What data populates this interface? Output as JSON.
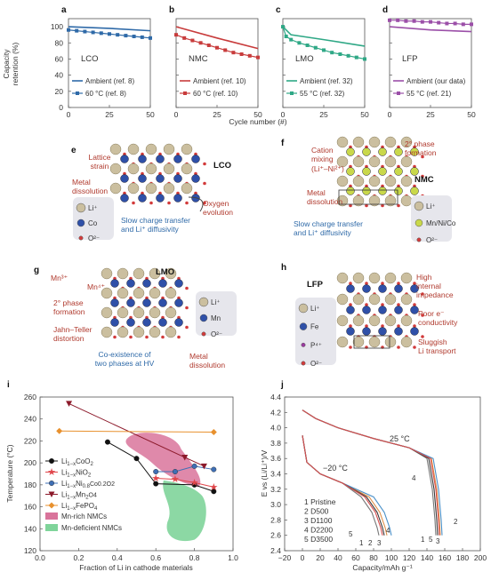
{
  "top": {
    "ylabel": [
      "Capacity",
      "retention (%)"
    ],
    "xlabel": "Cycle number (#)",
    "yticks": [
      "0",
      "20",
      "40",
      "60",
      "80",
      "100"
    ],
    "xticks": [
      "0",
      "25",
      "50"
    ],
    "panels": [
      {
        "letter": "a",
        "material": "LCO",
        "color": "#2f6aa8",
        "legend": [
          "Ambient (ref. 8)",
          "60 °C (ref. 8)"
        ],
        "ambient": [
          [
            0,
            100
          ],
          [
            25,
            98
          ],
          [
            50,
            95
          ]
        ],
        "hot": [
          [
            0,
            96
          ],
          [
            5,
            95
          ],
          [
            10,
            94
          ],
          [
            15,
            93
          ],
          [
            20,
            92
          ],
          [
            25,
            91
          ],
          [
            30,
            90
          ],
          [
            35,
            89
          ],
          [
            40,
            88
          ],
          [
            45,
            87
          ],
          [
            50,
            86
          ]
        ]
      },
      {
        "letter": "b",
        "material": "NMC",
        "color": "#c83c3c",
        "legend": [
          "Ambient (ref. 10)",
          "60 °C (ref. 10)"
        ],
        "ambient": [
          [
            0,
            100
          ],
          [
            25,
            86
          ],
          [
            50,
            73
          ]
        ],
        "hot": [
          [
            0,
            90
          ],
          [
            5,
            86
          ],
          [
            10,
            83
          ],
          [
            15,
            80
          ],
          [
            20,
            77
          ],
          [
            25,
            74
          ],
          [
            30,
            71
          ],
          [
            35,
            68
          ],
          [
            40,
            66
          ],
          [
            45,
            64
          ],
          [
            50,
            62
          ]
        ]
      },
      {
        "letter": "c",
        "material": "LMO",
        "color": "#2fa886",
        "legend": [
          "Ambient (ref. 32)",
          "55 °C (ref. 32)"
        ],
        "ambient": [
          [
            0,
            100
          ],
          [
            5,
            90
          ],
          [
            25,
            84
          ],
          [
            50,
            76
          ]
        ],
        "hot": [
          [
            0,
            100
          ],
          [
            2,
            88
          ],
          [
            5,
            84
          ],
          [
            10,
            80
          ],
          [
            15,
            77
          ],
          [
            20,
            74
          ],
          [
            25,
            71
          ],
          [
            30,
            68
          ],
          [
            35,
            66
          ],
          [
            40,
            64
          ],
          [
            45,
            62
          ],
          [
            50,
            60
          ]
        ]
      },
      {
        "letter": "d",
        "material": "LFP",
        "color": "#9b4fa8",
        "legend": [
          "Ambient (our data)",
          "55 °C (ref. 21)"
        ],
        "ambient": [
          [
            0,
            100
          ],
          [
            25,
            96
          ],
          [
            50,
            94
          ]
        ],
        "hot": [
          [
            0,
            108
          ],
          [
            5,
            108
          ],
          [
            10,
            107
          ],
          [
            15,
            107
          ],
          [
            20,
            106
          ],
          [
            25,
            106
          ],
          [
            30,
            105
          ],
          [
            35,
            104
          ],
          [
            40,
            104
          ],
          [
            45,
            103
          ],
          [
            50,
            103
          ]
        ]
      }
    ]
  },
  "schematics": {
    "e": {
      "letter": "e",
      "title": "LCO",
      "labels": [
        "Lattice",
        "strain",
        "Metal",
        "dissolution",
        "Oxygen",
        "evolution",
        "Slow charge transfer",
        "and Li⁺ diffusivity"
      ],
      "legend": [
        "Li⁺",
        "Co",
        "O²⁻"
      ]
    },
    "f": {
      "letter": "f",
      "title": "NMC",
      "labels": [
        "Cation",
        "mixing",
        "(Li⁺–Ni²⁺)",
        "2° phase",
        "formation",
        "Metal",
        "dissolution",
        "Slow charge transfer",
        "and Li⁺ diffusivity"
      ],
      "legend": [
        "Li⁺",
        "Mn/Ni/Co",
        "O²⁻"
      ]
    },
    "g": {
      "letter": "g",
      "title": "LMO",
      "labels": [
        "Mn³⁺",
        "Mn⁴⁺",
        "2° phase",
        "formation",
        "Jahn–Teller",
        "distortion",
        "Co-existence of",
        "two phases at HV",
        "Metal",
        "dissolution"
      ],
      "legend": [
        "Li⁺",
        "Mn",
        "O²⁻"
      ]
    },
    "h": {
      "letter": "h",
      "title": "LFP",
      "labels": [
        "High",
        "internal",
        "impedance",
        "Poor e⁻",
        "conductivity",
        "Sluggish",
        "Li transport"
      ],
      "legend": [
        "Li⁺",
        "Fe",
        "P⁴⁺",
        "O²⁻"
      ]
    }
  },
  "chart_data": [
    {
      "panel": "i",
      "type": "scatter",
      "ylabel": "Temperature (°C)",
      "xlabel": "Fraction of Li in cathode materials",
      "xlim": [
        0,
        1.0
      ],
      "ylim": [
        120,
        260
      ],
      "xticks": [
        "0.0",
        "0.2",
        "0.4",
        "0.6",
        "0.8",
        "1.0"
      ],
      "yticks": [
        "120",
        "140",
        "160",
        "180",
        "200",
        "220",
        "240",
        "260"
      ],
      "series": [
        {
          "name": "Li1-xCoO2",
          "color": "#111111",
          "marker": "circle",
          "x": [
            0.35,
            0.5,
            0.6,
            0.8,
            0.9
          ],
          "y": [
            219,
            204,
            181,
            180,
            174
          ]
        },
        {
          "name": "Li1-xNiO2",
          "color": "#e0464b",
          "marker": "star",
          "x": [
            0.6,
            0.7,
            0.8,
            0.9
          ],
          "y": [
            186,
            185,
            182,
            178
          ]
        },
        {
          "name": "Li1-xNi0.8Co0.2O2",
          "color": "#3f6fb5",
          "marker": "circle",
          "x": [
            0.6,
            0.7,
            0.8,
            0.9
          ],
          "y": [
            192,
            192,
            197,
            194
          ]
        },
        {
          "name": "Li1-xMn2O4",
          "color": "#8c1a2b",
          "marker": "triangle",
          "x": [
            0.15,
            0.75,
            0.85
          ],
          "y": [
            254,
            205,
            197
          ]
        },
        {
          "name": "Li1-xFePO4",
          "color": "#e8912e",
          "marker": "diamond",
          "x": [
            0.1,
            0.9
          ],
          "y": [
            229,
            228
          ]
        }
      ],
      "legend": [
        {
          "label": "Li",
          "sub": "1−x",
          "rest": "CoO",
          "sub2": "2",
          "rest2": ""
        },
        {
          "label": "Li",
          "sub": "1−x",
          "rest": "NiO",
          "sub2": "2",
          "rest2": ""
        },
        {
          "label": "Li",
          "sub": "1−x",
          "rest": "Ni",
          "sub2": "0.8",
          "rest2": "Co0.2O2"
        },
        {
          "label": "Li",
          "sub": "1−x",
          "rest": "Mn",
          "sub2": "2",
          "rest2": "O4"
        },
        {
          "label": "Li",
          "sub": "1−x",
          "rest": "FePO",
          "sub2": "4",
          "rest2": ""
        }
      ],
      "regions": [
        {
          "name": "Mn-rich NMCs",
          "color": "#d9749b"
        },
        {
          "name": "Mn-deficient NMCs",
          "color": "#7fd49a"
        }
      ]
    },
    {
      "panel": "j",
      "type": "line",
      "ylabel": "E vs (Li/Li⁺)/V",
      "xlabel": "Capacity/mAh g⁻¹",
      "xlim": [
        -20,
        200
      ],
      "ylim": [
        2.4,
        4.4
      ],
      "xticks": [
        "−20",
        "0",
        "20",
        "40",
        "60",
        "80",
        "100",
        "120",
        "140",
        "160",
        "180",
        "200"
      ],
      "yticks": [
        "2.4",
        "2.6",
        "2.8",
        "3.0",
        "3.2",
        "3.4",
        "3.6",
        "3.8",
        "4.0",
        "4.2",
        "4.4"
      ],
      "temps": [
        "25 °C",
        "−20 °C"
      ],
      "legend": [
        "1 Pristine",
        "2 D500",
        "3 D1100",
        "4 D2200",
        "5 D3500"
      ],
      "colors": [
        "#777777",
        "#e0904a",
        "#4a90c8",
        "#3a3a3a",
        "#d95050"
      ],
      "warm_end": [
        150,
        155,
        157,
        152,
        154
      ],
      "cold_end": [
        86,
        95,
        100,
        92,
        90
      ]
    }
  ]
}
